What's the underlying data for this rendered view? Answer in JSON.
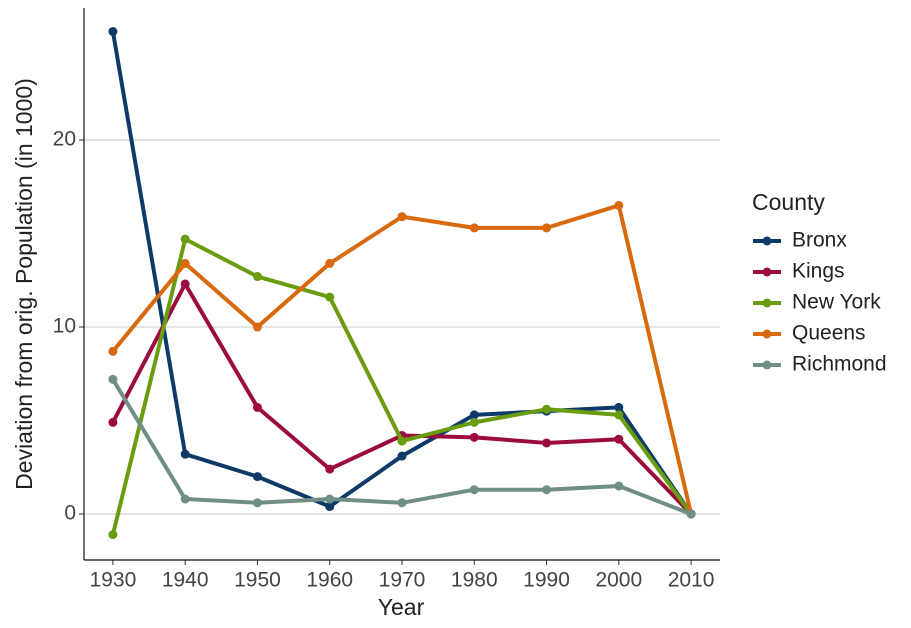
{
  "chart_data": {
    "type": "line",
    "x_label": "Year",
    "y_label": "Deviation from orig. Population (in 1000)",
    "legend_title": "County",
    "x": [
      1930,
      1940,
      1950,
      1960,
      1970,
      1980,
      1990,
      2000,
      2010
    ],
    "xlim": [
      1926,
      2014
    ],
    "xticks": [
      1930,
      1940,
      1950,
      1960,
      1970,
      1980,
      1990,
      2000,
      2010
    ],
    "ylim": [
      -2.46,
      27.06
    ],
    "yticks": [
      0,
      10,
      20
    ],
    "grid": true,
    "series": [
      {
        "name": "Bronx",
        "color": "#0d3a67",
        "values": [
          25.8,
          3.2,
          2.0,
          0.4,
          3.1,
          5.3,
          5.5,
          5.7,
          0
        ]
      },
      {
        "name": "Kings",
        "color": "#9b0b40",
        "values": [
          4.9,
          12.3,
          5.7,
          2.4,
          4.2,
          4.1,
          3.8,
          4.0,
          0
        ]
      },
      {
        "name": "New York",
        "color": "#6a9c0f",
        "values": [
          -1.1,
          14.7,
          12.7,
          11.6,
          3.9,
          4.9,
          5.6,
          5.3,
          0
        ]
      },
      {
        "name": "Queens",
        "color": "#d8690d",
        "values": [
          8.7,
          13.4,
          10.0,
          13.4,
          15.9,
          15.3,
          15.3,
          16.5,
          0
        ]
      },
      {
        "name": "Richmond",
        "color": "#6f8f86",
        "values": [
          7.2,
          0.8,
          0.6,
          0.8,
          0.6,
          1.3,
          1.3,
          1.5,
          0
        ]
      }
    ]
  }
}
